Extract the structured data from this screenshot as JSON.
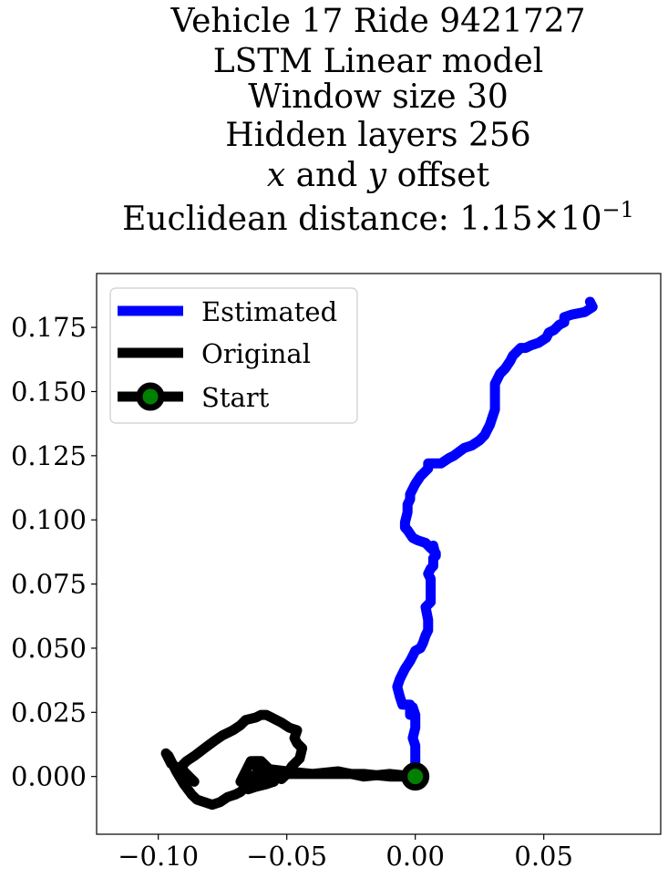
{
  "chart_data": {
    "type": "line",
    "title_lines": [
      "Vehicle 17 Ride 9421727",
      "LSTM Linear model",
      "Window size 30",
      "Hidden layers 256",
      "x and y offset"
    ],
    "title_xy_line": {
      "x_var": "x",
      "conj": " and ",
      "y_var": "y",
      "suffix": " offset"
    },
    "title_distance": {
      "prefix": "Euclidean distance: ",
      "mantissa": "1.15",
      "times": "×",
      "base": "10",
      "exponent": "−1"
    },
    "xlim": [
      -0.124,
      0.0955
    ],
    "ylim": [
      -0.0225,
      0.196
    ],
    "x_ticks": [
      -0.1,
      -0.05,
      0.0,
      0.05
    ],
    "x_tick_labels": [
      "−0.10",
      "−0.05",
      "0.00",
      "0.05"
    ],
    "y_ticks": [
      0.0,
      0.025,
      0.05,
      0.075,
      0.1,
      0.125,
      0.15,
      0.175
    ],
    "y_tick_labels": [
      "0.000",
      "0.025",
      "0.050",
      "0.075",
      "0.100",
      "0.125",
      "0.150",
      "0.175"
    ],
    "legend": {
      "placement": "upper-left",
      "entries": [
        "Estimated",
        "Original",
        "Start"
      ]
    },
    "colors": {
      "estimated": "#0000ff",
      "original": "#000000",
      "start_edge": "#000000",
      "start_face": "#008000"
    },
    "series": [
      {
        "name": "Estimated",
        "x": [
          0.0,
          0.0,
          0.0,
          -0.001,
          0.0,
          0.0,
          -0.001,
          -0.002,
          -0.002,
          -0.005,
          -0.006,
          -0.007,
          -0.006,
          -0.004,
          -0.002,
          -0.001,
          0.0,
          0.002,
          0.003,
          0.004,
          0.005,
          0.005,
          0.004,
          0.006,
          0.006,
          0.006,
          0.005,
          0.006,
          0.007,
          0.007,
          0.008,
          0.008,
          0.007,
          0.007,
          0.008,
          0.007,
          0.006,
          0.004,
          0.001,
          -0.001,
          -0.003,
          -0.004,
          -0.004,
          -0.003,
          -0.003,
          -0.002,
          -0.002,
          -0.001,
          0.0,
          0.002,
          0.005,
          0.005,
          0.008,
          0.01,
          0.013,
          0.015,
          0.019,
          0.022,
          0.025,
          0.027,
          0.028,
          0.029,
          0.03,
          0.031,
          0.031,
          0.031,
          0.031,
          0.032,
          0.033,
          0.035,
          0.037,
          0.038,
          0.04,
          0.041,
          0.043,
          0.045,
          0.048,
          0.051,
          0.052,
          0.054,
          0.056,
          0.058,
          0.058,
          0.061,
          0.066,
          0.069,
          0.068
        ],
        "y": [
          0.0,
          0.006,
          0.012,
          0.015,
          0.019,
          0.024,
          0.027,
          0.024,
          0.028,
          0.028,
          0.031,
          0.035,
          0.038,
          0.042,
          0.045,
          0.047,
          0.049,
          0.05,
          0.052,
          0.055,
          0.057,
          0.061,
          0.066,
          0.068,
          0.072,
          0.077,
          0.079,
          0.081,
          0.082,
          0.085,
          0.086,
          0.087,
          0.088,
          0.089,
          0.086,
          0.09,
          0.089,
          0.091,
          0.092,
          0.093,
          0.096,
          0.097,
          0.099,
          0.103,
          0.106,
          0.108,
          0.11,
          0.112,
          0.114,
          0.117,
          0.12,
          0.122,
          0.122,
          0.122,
          0.124,
          0.125,
          0.128,
          0.129,
          0.131,
          0.133,
          0.135,
          0.137,
          0.14,
          0.143,
          0.147,
          0.15,
          0.153,
          0.155,
          0.157,
          0.159,
          0.162,
          0.164,
          0.166,
          0.167,
          0.167,
          0.168,
          0.169,
          0.171,
          0.173,
          0.174,
          0.176,
          0.177,
          0.179,
          0.18,
          0.181,
          0.183,
          0.185
        ]
      },
      {
        "name": "Original",
        "x": [
          0.0,
          -0.01,
          -0.02,
          -0.03,
          -0.04,
          -0.05,
          -0.058,
          -0.062,
          -0.063,
          -0.06,
          -0.057,
          -0.055,
          -0.052,
          -0.05,
          -0.048,
          -0.045,
          -0.044,
          -0.046,
          -0.047,
          -0.046,
          -0.049,
          -0.052,
          -0.056,
          -0.058,
          -0.06,
          -0.062,
          -0.066,
          -0.068,
          -0.071,
          -0.075,
          -0.078,
          -0.082,
          -0.086,
          -0.089,
          -0.091,
          -0.09,
          -0.088,
          -0.086,
          -0.09,
          -0.092,
          -0.095,
          -0.097,
          -0.096,
          -0.093,
          -0.09,
          -0.087,
          -0.085,
          -0.082,
          -0.079,
          -0.076,
          -0.073,
          -0.07,
          -0.068,
          -0.066,
          -0.064,
          -0.063,
          -0.062,
          -0.064,
          -0.066,
          -0.068,
          -0.067,
          -0.066,
          -0.065,
          -0.064,
          -0.061,
          -0.058,
          -0.056,
          -0.055,
          -0.058,
          -0.062,
          -0.065,
          -0.06,
          -0.055,
          -0.05,
          -0.04,
          -0.03,
          -0.02,
          -0.01,
          -0.005,
          0.0
        ],
        "y": [
          0.0,
          0.001,
          0.0,
          0.002,
          0.001,
          0.002,
          0.003,
          0.004,
          0.006,
          0.006,
          0.003,
          0.0,
          -0.001,
          0.001,
          0.004,
          0.007,
          0.011,
          0.013,
          0.015,
          0.018,
          0.019,
          0.021,
          0.023,
          0.024,
          0.024,
          0.023,
          0.022,
          0.02,
          0.018,
          0.016,
          0.014,
          0.011,
          0.008,
          0.006,
          0.004,
          0.002,
          0.0,
          -0.002,
          0.0,
          0.003,
          0.005,
          0.009,
          0.008,
          0.002,
          -0.003,
          -0.007,
          -0.009,
          -0.01,
          -0.011,
          -0.01,
          -0.008,
          -0.007,
          -0.006,
          -0.004,
          -0.002,
          0.0,
          0.001,
          -0.001,
          -0.003,
          -0.002,
          0.0,
          0.002,
          0.004,
          0.006,
          0.004,
          0.002,
          0.0,
          -0.002,
          -0.003,
          -0.004,
          -0.005,
          0.0,
          0.001,
          0.001,
          0.001,
          0.001,
          0.001,
          0.0,
          0.0,
          0.0
        ]
      }
    ],
    "start_point": {
      "name": "Start",
      "x": 0.0,
      "y": 0.0
    }
  }
}
